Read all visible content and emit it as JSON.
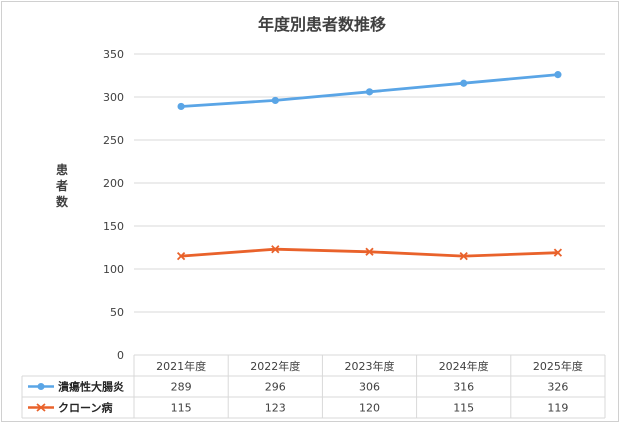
{
  "chart_data": {
    "type": "line",
    "title": "年度別患者数推移",
    "ylabel": "患者数",
    "xlabel": "",
    "categories": [
      "2021年度",
      "2022年度",
      "2023年度",
      "2024年度",
      "2025年度"
    ],
    "series": [
      {
        "name": "潰瘍性大腸炎",
        "values": [
          289,
          296,
          306,
          316,
          326
        ],
        "color": "#5aa5e6",
        "marker": "circle"
      },
      {
        "name": "クローン病",
        "values": [
          115,
          123,
          120,
          115,
          119
        ],
        "color": "#e9622b",
        "marker": "x"
      }
    ],
    "ylim": [
      0,
      350
    ],
    "yticks": [
      "0",
      "50",
      "100",
      "150",
      "200",
      "250",
      "300",
      "350"
    ],
    "grid": true,
    "legend": "data-table"
  }
}
